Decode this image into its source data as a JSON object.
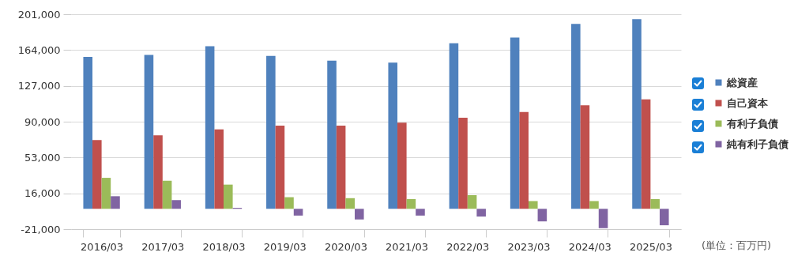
{
  "chart_data": {
    "type": "bar",
    "categories": [
      "2016/03",
      "2017/03",
      "2018/03",
      "2019/03",
      "2020/03",
      "2021/03",
      "2022/03",
      "2023/03",
      "2024/03",
      "2025/03"
    ],
    "series": [
      {
        "name": "総資産",
        "color": "#4f81bd",
        "values": [
          157000,
          159000,
          168000,
          158000,
          153000,
          151000,
          171000,
          177000,
          191000,
          196000
        ]
      },
      {
        "name": "自己資本",
        "color": "#c0504d",
        "values": [
          71000,
          76000,
          82000,
          86000,
          86000,
          89000,
          94000,
          100000,
          107000,
          113000
        ]
      },
      {
        "name": "有利子負債",
        "color": "#9bbb59",
        "values": [
          32000,
          29000,
          25000,
          12000,
          11000,
          10000,
          14000,
          8000,
          8000,
          10000
        ]
      },
      {
        "name": "純有利子負債",
        "color": "#8064a2",
        "values": [
          13000,
          9000,
          1000,
          -7000,
          -11000,
          -7000,
          -8000,
          -13000,
          -20000,
          -17000
        ]
      }
    ],
    "ylim": [
      -21000,
      201000
    ],
    "yticks": [
      {
        "value": -21000,
        "label": "-21,000"
      },
      {
        "value": 16000,
        "label": "16,000"
      },
      {
        "value": 53000,
        "label": "53,000"
      },
      {
        "value": 90000,
        "label": "90,000"
      },
      {
        "value": 127000,
        "label": "127,000"
      },
      {
        "value": 164000,
        "label": "164,000"
      },
      {
        "value": 201000,
        "label": "201,000"
      }
    ],
    "grid": "y",
    "legend": "right",
    "annotations": [
      "(単位：百万円)"
    ]
  }
}
